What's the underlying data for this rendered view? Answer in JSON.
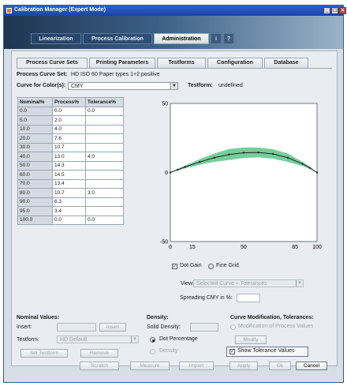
{
  "window": {
    "title": "Calibration Manager (Expert Mode)"
  },
  "top_tabs": [
    "Linearization",
    "Process Calibration",
    "Administration",
    "i",
    "?"
  ],
  "sub_tabs": [
    "Process Curve Sets",
    "Printing Parameters",
    "Testforms",
    "Configuration",
    "Database"
  ],
  "curve_set": {
    "label": "Process Curve Set:",
    "value": "HD ISO 60 Paper types 1+2 positive"
  },
  "curve_for_color": {
    "label": "Curve for Color(s):",
    "value": "CMY"
  },
  "testform": {
    "label": "Testform:",
    "value": "undefined"
  },
  "table": {
    "headers": [
      "Nominal%",
      "Process%",
      "Tolerance%"
    ],
    "rows": [
      [
        "0.0",
        "0.0",
        "0.0"
      ],
      [
        "5.0",
        "2.0",
        ""
      ],
      [
        "10.0",
        "4.0",
        ""
      ],
      [
        "20.0",
        "7.6",
        ""
      ],
      [
        "30.0",
        "10.7",
        ""
      ],
      [
        "40.0",
        "13.0",
        "4.0"
      ],
      [
        "50.0",
        "14.3",
        ""
      ],
      [
        "60.0",
        "14.5",
        ""
      ],
      [
        "70.0",
        "13.4",
        ""
      ],
      [
        "80.0",
        "10.7",
        "3.0"
      ],
      [
        "90.0",
        "6.3",
        ""
      ],
      [
        "95.0",
        "3.4",
        ""
      ],
      [
        "100.0",
        "0.0",
        "0.0"
      ]
    ]
  },
  "chart_data": {
    "type": "line",
    "x": [
      0,
      5,
      10,
      20,
      30,
      40,
      50,
      60,
      70,
      80,
      90,
      95,
      100
    ],
    "series": [
      {
        "values": [
          0.0,
          2.0,
          4.0,
          7.6,
          10.7,
          13.0,
          14.3,
          14.5,
          13.4,
          10.7,
          6.3,
          3.4,
          0.0
        ]
      }
    ],
    "tolerance": [
      0.0,
      0.5,
      1.0,
      2.0,
      3.0,
      4.0,
      3.8,
      3.6,
      3.4,
      3.0,
      1.5,
      0.8,
      0.0
    ],
    "y_ticks": [
      "50",
      "0",
      "-50"
    ],
    "x_ticks": [
      "0",
      "15",
      "50",
      "85",
      "100"
    ],
    "xlim": [
      0,
      100
    ],
    "ylim": [
      -50,
      50
    ],
    "line_color": "#222222",
    "band_color": "#5dc58a"
  },
  "chart_options": {
    "dot_gain": "Dot Gain",
    "fine_grid": "Fine Grid",
    "view_label": "View:",
    "view_value": "Selected Curve + Tolerances",
    "spreading_label": "Spreading CMY in %:"
  },
  "nominal": {
    "heading": "Nominal Values:",
    "insert_label": "Insert:",
    "insert_button": "Insert",
    "testform_label": "Testform:",
    "testform_value": "HD Default",
    "set_testform_button": "Set Testform",
    "remove_button": "Remove"
  },
  "density": {
    "heading": "Density:",
    "solid_label": "Solid Density:",
    "dot_percentage": "Dot Percentage",
    "density_option": "Density"
  },
  "curve_mod": {
    "heading": "Curve Modification, Tolerances:",
    "modification_option": "Modification of Process Values",
    "modify_button": "Modify",
    "show_tolerance": "Show Tolerance Values"
  },
  "bottom_buttons": [
    "Scratch",
    "Measure",
    "Import",
    "Apply",
    "Ok",
    "Cancel"
  ],
  "colors": {
    "title_bar": "#1b43a8",
    "band": "#5dc58a"
  }
}
